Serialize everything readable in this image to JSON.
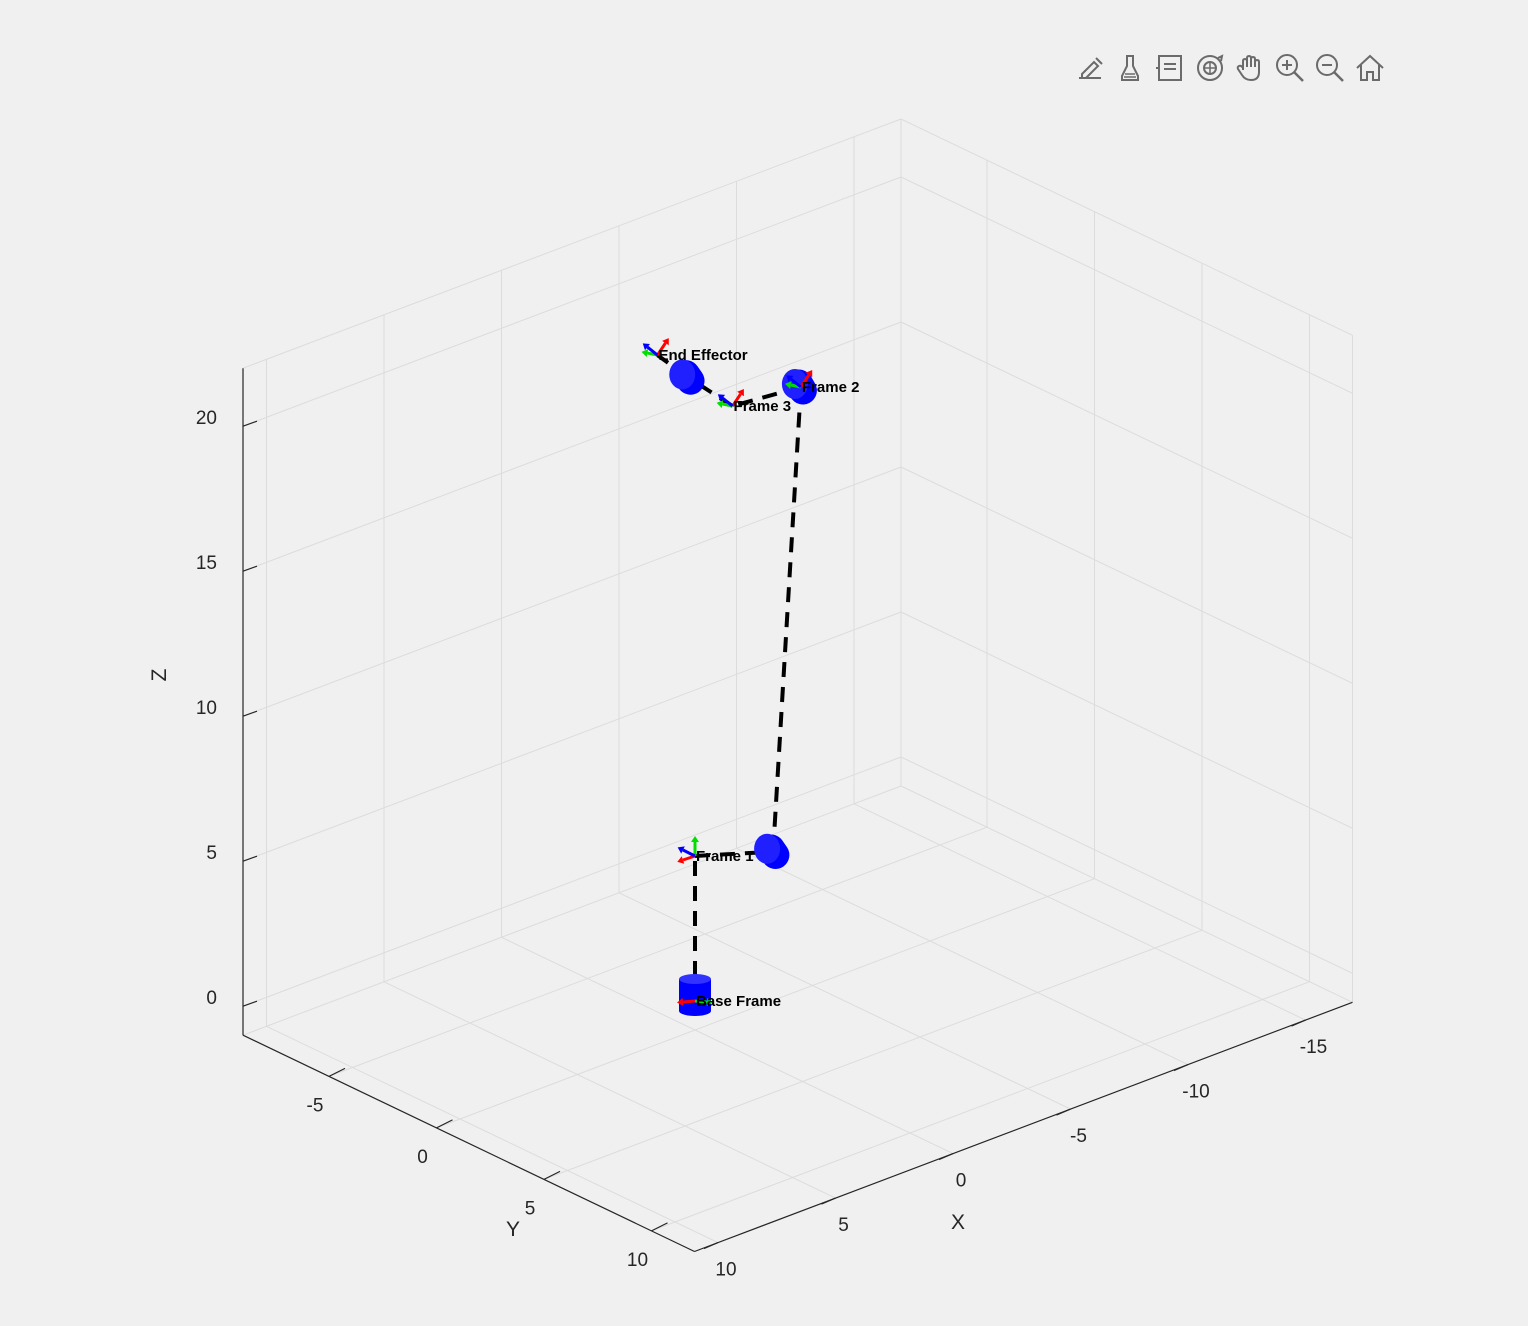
{
  "toolbar": {
    "buttons": [
      {
        "name": "edit-plot-button",
        "icon": "edit-plot-icon"
      },
      {
        "name": "brush-button",
        "icon": "brush-icon"
      },
      {
        "name": "data-tips-button",
        "icon": "data-tips-icon"
      },
      {
        "name": "rotate-3d-button",
        "icon": "rotate-3d-icon"
      },
      {
        "name": "pan-button",
        "icon": "hand-icon"
      },
      {
        "name": "zoom-in-button",
        "icon": "zoom-in-icon"
      },
      {
        "name": "zoom-out-button",
        "icon": "zoom-out-icon"
      },
      {
        "name": "restore-view-button",
        "icon": "home-icon"
      }
    ],
    "icon_color": "#6b6b6b"
  },
  "chart_data": {
    "type": "3d-line",
    "title": "",
    "xlabel": "X",
    "ylabel": "Y",
    "zlabel": "Z",
    "xlim": [
      -17,
      11
    ],
    "ylim": [
      -9,
      12
    ],
    "zlim": [
      -1,
      22
    ],
    "xticks": [
      -15,
      -10,
      -5,
      0,
      5,
      10
    ],
    "yticks": [
      -5,
      0,
      5,
      10
    ],
    "zticks": [
      0,
      5,
      10,
      15,
      20
    ],
    "grid": true,
    "colors": {
      "link": "#000000",
      "joint": "#0000ff",
      "axis_x": "#ff0000",
      "axis_y": "#00dd00",
      "axis_z": "#0000ff",
      "grid": "#dcdcdc",
      "box": "#262626"
    },
    "link_style": "dashed",
    "frames": [
      {
        "label": "Base Frame",
        "x": 0,
        "y": 0,
        "z": 0
      },
      {
        "label": "Frame 1",
        "x": 0,
        "y": 0,
        "z": 5
      },
      {
        "label": "Frame 2",
        "x": -7.8,
        "y": -3.6,
        "z": 17.5
      },
      {
        "label": "Frame 3",
        "x": -4.8,
        "y": -3.5,
        "z": 17.8
      },
      {
        "label": "End Effector",
        "x": 0.5,
        "y": -1.2,
        "z": 22
      }
    ],
    "path": [
      {
        "x": 0,
        "y": 0,
        "z": 0
      },
      {
        "x": 0,
        "y": 0,
        "z": 5
      },
      {
        "x": -2.5,
        "y": 0.9,
        "z": 4.7
      },
      {
        "x": -7.8,
        "y": -3.6,
        "z": 17.5
      },
      {
        "x": -4.8,
        "y": -3.5,
        "z": 17.8
      },
      {
        "x": -2.0,
        "y": -2.5,
        "z": 20.0
      },
      {
        "x": 0.5,
        "y": -1.2,
        "z": 22
      }
    ],
    "joints": [
      {
        "x": 0,
        "y": 0,
        "z": 0,
        "orientation": "vertical"
      },
      {
        "x": -2.5,
        "y": 0.9,
        "z": 4.7,
        "orientation": "side"
      },
      {
        "x": -7.8,
        "y": -3.6,
        "z": 17.5,
        "orientation": "side"
      },
      {
        "x": -2.0,
        "y": -2.5,
        "z": 20.0,
        "orientation": "side"
      }
    ]
  }
}
